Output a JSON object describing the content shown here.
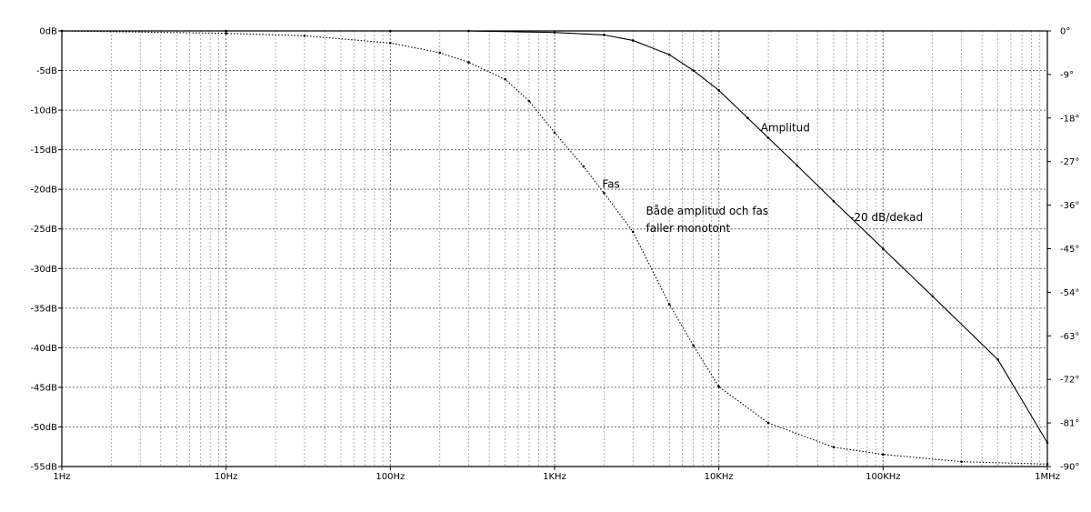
{
  "chart_data": {
    "type": "line",
    "x_scale": "log",
    "xlim": [
      1,
      1000000
    ],
    "left_ylim": [
      -55,
      0
    ],
    "right_ylim": [
      -90,
      0
    ],
    "grid": true,
    "x_tick_labels": [
      {
        "value": 1,
        "label": "1Hz"
      },
      {
        "value": 10,
        "label": "10Hz"
      },
      {
        "value": 100,
        "label": "100Hz"
      },
      {
        "value": 1000,
        "label": "1KHz"
      },
      {
        "value": 10000,
        "label": "10KHz"
      },
      {
        "value": 100000,
        "label": "100KHz"
      },
      {
        "value": 1000000,
        "label": "1MHz"
      }
    ],
    "left_tick_labels": [
      {
        "value": 0,
        "label": "0dB"
      },
      {
        "value": -5,
        "label": "-5dB"
      },
      {
        "value": -10,
        "label": "-10dB"
      },
      {
        "value": -15,
        "label": "-15dB"
      },
      {
        "value": -20,
        "label": "-20dB"
      },
      {
        "value": -25,
        "label": "-25dB"
      },
      {
        "value": -30,
        "label": "-30dB"
      },
      {
        "value": -35,
        "label": "-35dB"
      },
      {
        "value": -40,
        "label": "-40dB"
      },
      {
        "value": -45,
        "label": "-45dB"
      },
      {
        "value": -50,
        "label": "-50dB"
      },
      {
        "value": -55,
        "label": "-55dB"
      }
    ],
    "right_tick_labels": [
      {
        "value": 0,
        "label": "0°"
      },
      {
        "value": -9,
        "label": "-9°"
      },
      {
        "value": -18,
        "label": "-18°"
      },
      {
        "value": -27,
        "label": "-27°"
      },
      {
        "value": -36,
        "label": "-36°"
      },
      {
        "value": -45,
        "label": "-45°"
      },
      {
        "value": -54,
        "label": "-54°"
      },
      {
        "value": -63,
        "label": "-63°"
      },
      {
        "value": -72,
        "label": "-72°"
      },
      {
        "value": -81,
        "label": "-81°"
      },
      {
        "value": -90,
        "label": "-90°"
      }
    ],
    "series": [
      {
        "name": "Amplitud",
        "axis": "left",
        "style": "solid",
        "x": [
          1,
          10,
          100,
          300,
          1000,
          2000,
          3000,
          5000,
          7000,
          10000,
          15000,
          20000,
          30000,
          50000,
          100000,
          200000,
          500000,
          1000000
        ],
        "y": [
          0,
          0,
          0,
          0,
          -0.2,
          -0.5,
          -1.2,
          -3.0,
          -5.0,
          -7.5,
          -11.0,
          -13.5,
          -17.0,
          -21.5,
          -27.5,
          -33.5,
          -41.5,
          -52.0
        ]
      },
      {
        "name": "Fas",
        "axis": "right",
        "style": "dotted",
        "x": [
          1,
          10,
          30,
          100,
          200,
          300,
          500,
          700,
          1000,
          1500,
          2000,
          3000,
          5000,
          7000,
          10000,
          20000,
          50000,
          100000,
          300000,
          1000000
        ],
        "y": [
          0,
          -0.5,
          -1.0,
          -2.5,
          -4.5,
          -6.5,
          -10.0,
          -14.5,
          -21.0,
          -28.0,
          -33.5,
          -41.5,
          -56.5,
          -65.0,
          -73.5,
          -81.0,
          -86.0,
          -87.5,
          -89.0,
          -89.5
        ]
      }
    ],
    "annotations": [
      {
        "text": "Amplitud",
        "x": 18000,
        "y": -12.7,
        "axis": "left"
      },
      {
        "text": "Fas",
        "x": 1950,
        "y": -19.8,
        "axis": "left"
      },
      {
        "text": "Både amplitud och fas",
        "x": 3600,
        "y": -23.2,
        "axis": "left"
      },
      {
        "text": "faller monotont",
        "x": 3600,
        "y": -25.4,
        "axis": "left"
      },
      {
        "text": "-20 dB/dekad",
        "x": 63000,
        "y": -24.0,
        "axis": "left"
      }
    ]
  }
}
